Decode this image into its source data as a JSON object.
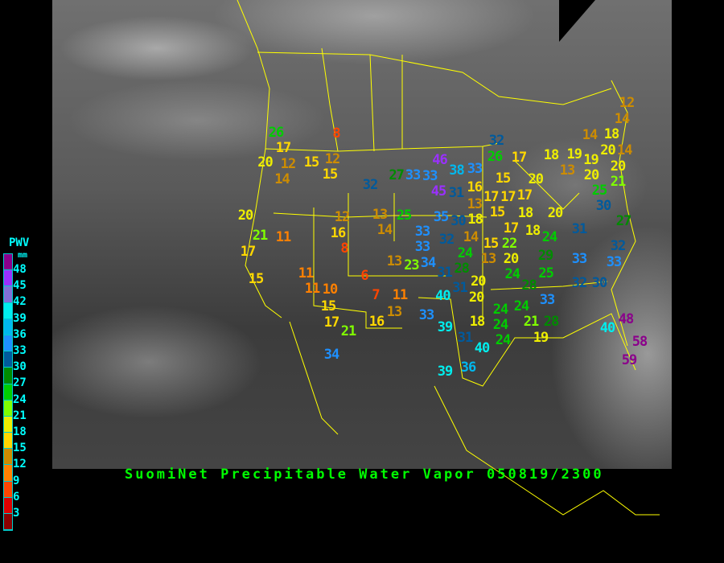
{
  "title": "SuomiNet Precipitable Water Vapor 050819/2300",
  "legend": {
    "title": "PWV",
    "unit": "mm",
    "ticks": [
      "48",
      "45",
      "42",
      "39",
      "36",
      "33",
      "30",
      "27",
      "24",
      "21",
      "18",
      "15",
      "12",
      "9",
      "6",
      "3"
    ],
    "colors": [
      "#8b008b",
      "#9a30ff",
      "#8070d8",
      "#00eeee",
      "#00b8ee",
      "#1e90ff",
      "#005a9c",
      "#008b00",
      "#00cd00",
      "#80ff00",
      "#eeee00",
      "#ffd700",
      "#cd8c00",
      "#ff8000",
      "#ff4500",
      "#dd0000",
      "#8b0000"
    ]
  },
  "stations": [
    26,
    17,
    20,
    12,
    15,
    12,
    15,
    14,
    8,
    32,
    27,
    33,
    20,
    21,
    11,
    17,
    12,
    16,
    8,
    13,
    25,
    14,
    33,
    13,
    23,
    15,
    6,
    11,
    11,
    10,
    7,
    11,
    15,
    13,
    17,
    21,
    16,
    33,
    34,
    32,
    46,
    33,
    38,
    33,
    26,
    45,
    31,
    17,
    18,
    16,
    17,
    17,
    13,
    15,
    15,
    20,
    17,
    18,
    17,
    18,
    20,
    12,
    14,
    14,
    18,
    19,
    20,
    14,
    19,
    13,
    20,
    20,
    21,
    25,
    30,
    35,
    30,
    18,
    33,
    32,
    14,
    15,
    22,
    34,
    24,
    28,
    13,
    20,
    24,
    29,
    24,
    25,
    28,
    31,
    32,
    33,
    33,
    32,
    30,
    27,
    31,
    31,
    20,
    40,
    20,
    39,
    18,
    24,
    24,
    24,
    24,
    21,
    28,
    19,
    33,
    31,
    40,
    39,
    36,
    48,
    40,
    58,
    59
  ]
}
